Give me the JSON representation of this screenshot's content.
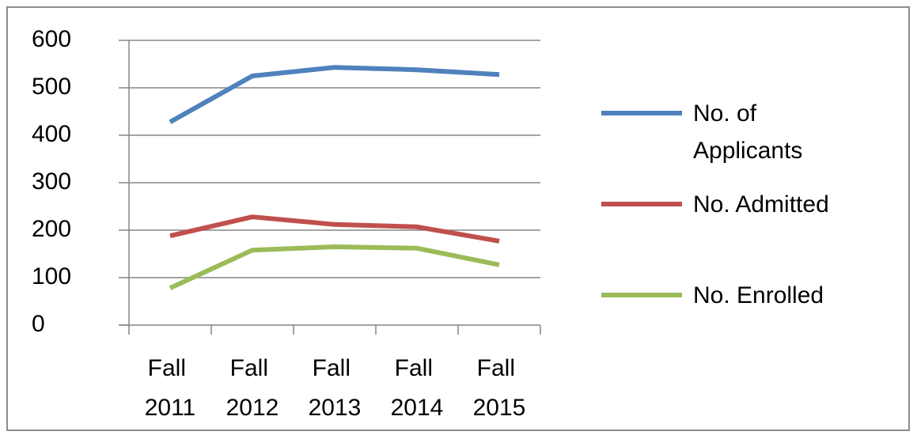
{
  "chart_data": {
    "type": "line",
    "categories": [
      "Fall 2011",
      "Fall 2012",
      "Fall 2013",
      "Fall 2014",
      "Fall 2015"
    ],
    "series": [
      {
        "name": "No. of Applicants",
        "color": "#4f81bd",
        "values": [
          428,
          525,
          543,
          538,
          528
        ]
      },
      {
        "name": "No. Admitted",
        "color": "#c0504d",
        "values": [
          188,
          228,
          212,
          207,
          177
        ]
      },
      {
        "name": "No. Enrolled",
        "color": "#9bbb59",
        "values": [
          78,
          158,
          165,
          162,
          127
        ]
      }
    ],
    "ylim": [
      0,
      600
    ],
    "yticks": [
      0,
      100,
      200,
      300,
      400,
      500,
      600
    ],
    "grid": true,
    "legend": "right"
  }
}
